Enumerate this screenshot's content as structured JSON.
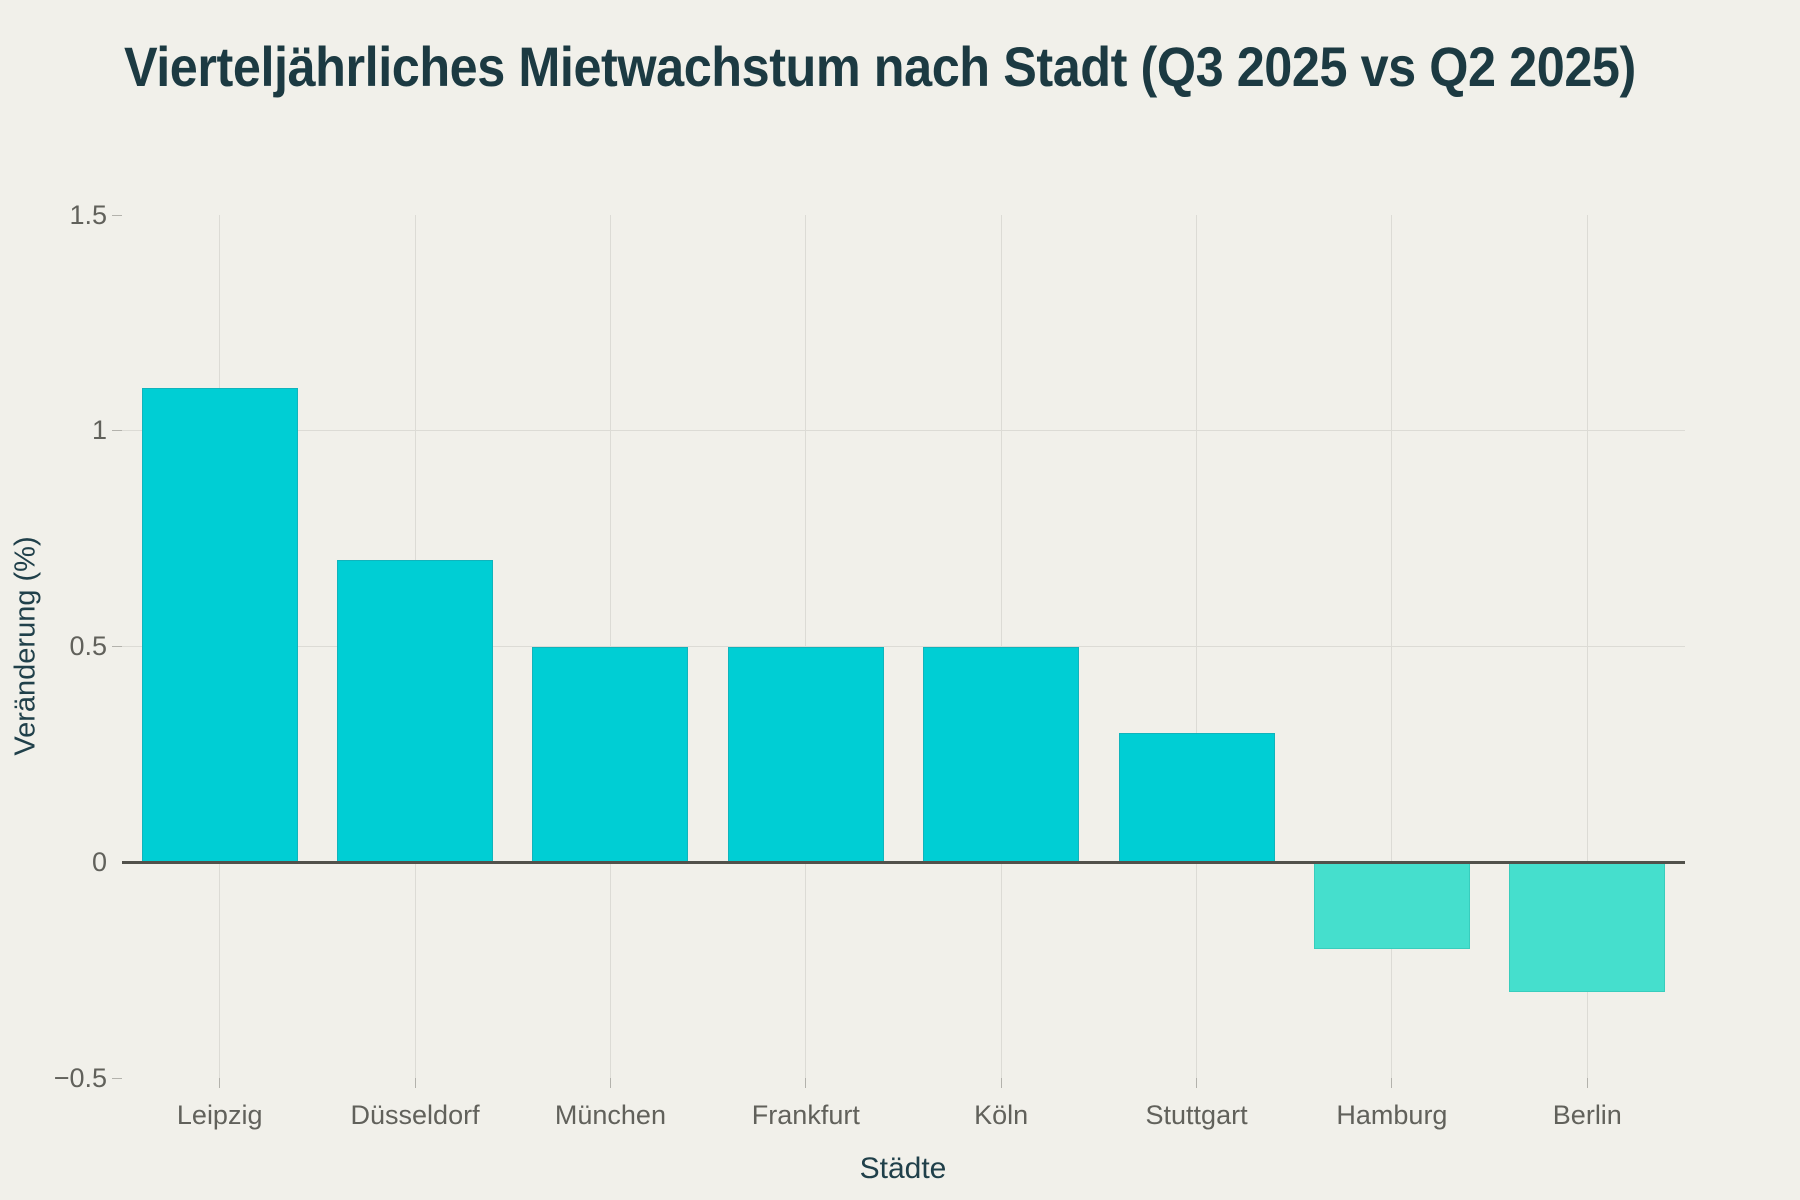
{
  "chart_data": {
    "type": "bar",
    "title": "Vierteljährliches Mietwachstum nach Stadt (Q3 2025 vs Q2 2025)",
    "xlabel": "Städte",
    "ylabel": "Veränderung (%)",
    "categories": [
      "Leipzig",
      "Düsseldorf",
      "München",
      "Frankfurt",
      "Köln",
      "Stuttgart",
      "Hamburg",
      "Berlin"
    ],
    "values": [
      1.1,
      0.7,
      0.5,
      0.5,
      0.5,
      0.3,
      -0.2,
      -0.3
    ],
    "ylim": [
      -0.5,
      1.5
    ],
    "yticks": [
      {
        "value": 1.5,
        "label": "1.5"
      },
      {
        "value": 1,
        "label": "1"
      },
      {
        "value": 0.5,
        "label": "0.5"
      },
      {
        "value": 0,
        "label": "0"
      },
      {
        "value": -0.5,
        "label": "−0.5"
      }
    ],
    "grid": true,
    "legend_position": "none",
    "colors": {
      "positive_bar": "#00ced4",
      "negative_bar": "#45dfcd",
      "positive_bar_border": "#10b4bc",
      "negative_bar_border": "#38cdbd",
      "background": "#f1f0ea",
      "gridline": "#dcdbd5",
      "zero_line": "#51514b",
      "tick_mark": "#b3b2ac",
      "tick_label": "#61615b",
      "axis_title": "#20404a",
      "title": "#1c3a42"
    }
  }
}
